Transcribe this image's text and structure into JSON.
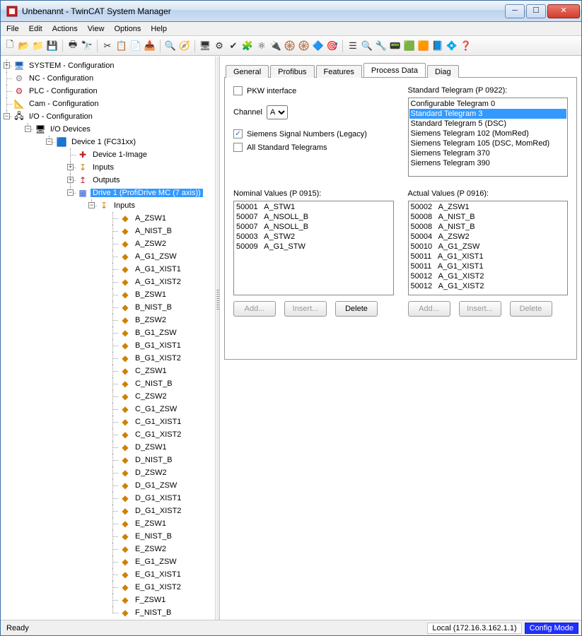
{
  "window": {
    "title": "Unbenannt - TwinCAT System Manager"
  },
  "menu": {
    "items": [
      "File",
      "Edit",
      "Actions",
      "View",
      "Options",
      "Help"
    ]
  },
  "toolbar": {
    "groups": [
      [
        "🗋",
        "📂",
        "📁",
        "💾"
      ],
      [
        "🖶",
        "🔭"
      ],
      [
        "✂",
        "📋",
        "📄",
        "📥"
      ],
      [
        "🔍",
        "🧭"
      ],
      [
        "🖥",
        "⚙",
        "✔",
        "🧩",
        "⚛",
        "🔌",
        "🛞",
        "🛞",
        "🔷",
        "🎯"
      ],
      [
        "☰",
        "🔍",
        "🔧",
        "📟",
        "🟩",
        "🟧",
        "📘",
        "💠",
        "❓"
      ]
    ]
  },
  "tree": {
    "top": [
      {
        "exp": "+",
        "icon": "🖥",
        "color": "#1a5fb4",
        "label": "SYSTEM - Configuration"
      },
      {
        "exp": "",
        "icon": "⚙",
        "color": "#888",
        "label": "NC - Configuration"
      },
      {
        "exp": "",
        "icon": "⚙",
        "color": "#c01c28",
        "label": "PLC - Configuration"
      },
      {
        "exp": "",
        "icon": "📐",
        "color": "#888",
        "label": "Cam - Configuration"
      }
    ],
    "io": {
      "label": "I/O - Configuration",
      "icon": "🖧",
      "exp": "−",
      "devices": {
        "label": "I/O Devices",
        "icon": "🖥",
        "exp": "−",
        "dev": {
          "label": "Device 1 (FC31xx)",
          "icon": "🟦",
          "exp": "−",
          "image": {
            "label": "Device 1-Image",
            "icon": "✚",
            "color": "#c01c28"
          },
          "inputs": {
            "label": "Inputs",
            "icon": "↧",
            "exp": "+"
          },
          "outputs": {
            "label": "Outputs",
            "icon": "↥",
            "exp": "+"
          },
          "drive": {
            "label": "Drive 1 (ProfiDrive MC (7 axis))",
            "icon": "▦",
            "exp": "−",
            "selected": true,
            "inputs": {
              "label": "Inputs",
              "icon": "↧",
              "exp": "−",
              "vars": [
                "A_ZSW1",
                "A_NIST_B",
                "A_ZSW2",
                "A_G1_ZSW",
                "A_G1_XIST1",
                "A_G1_XIST2",
                "B_ZSW1",
                "B_NIST_B",
                "B_ZSW2",
                "B_G1_ZSW",
                "B_G1_XIST1",
                "B_G1_XIST2",
                "C_ZSW1",
                "C_NIST_B",
                "C_ZSW2",
                "C_G1_ZSW",
                "C_G1_XIST1",
                "C_G1_XIST2",
                "D_ZSW1",
                "D_NIST_B",
                "D_ZSW2",
                "D_G1_ZSW",
                "D_G1_XIST1",
                "D_G1_XIST2",
                "E_ZSW1",
                "E_NIST_B",
                "E_ZSW2",
                "E_G1_ZSW",
                "E_G1_XIST1",
                "E_G1_XIST2",
                "F_ZSW1",
                "F_NIST_B"
              ]
            }
          }
        }
      }
    }
  },
  "tabs": {
    "items": [
      "General",
      "Profibus",
      "Features",
      "Process Data",
      "Diag"
    ],
    "active": 3
  },
  "panel": {
    "pkw_label": "PKW interface",
    "pkw_checked": false,
    "channel_label": "Channel",
    "channel_value": "A",
    "siemens_label": "Siemens Signal Numbers (Legacy)",
    "siemens_checked": true,
    "allstd_label": "All Standard Telegrams",
    "allstd_checked": false,
    "telegram_hdr": "Standard Telegram (P 0922):",
    "telegrams": [
      {
        "text": "Configurable Telegram 0",
        "sel": false
      },
      {
        "text": "Standard Telegram 3",
        "sel": true
      },
      {
        "text": "Standard Telegram 5 (DSC)",
        "sel": false
      },
      {
        "text": "Siemens Telegram 102 (MomRed)",
        "sel": false
      },
      {
        "text": "Siemens Telegram 105 (DSC, MomRed)",
        "sel": false
      },
      {
        "text": "Siemens Telegram 370",
        "sel": false
      },
      {
        "text": "Siemens Telegram 390",
        "sel": false
      }
    ],
    "nominal_hdr": "Nominal Values (P 0915):",
    "nominal": [
      [
        "50001",
        "A_STW1"
      ],
      [
        "50007",
        "A_NSOLL_B"
      ],
      [
        "50007",
        "A_NSOLL_B"
      ],
      [
        "50003",
        "A_STW2"
      ],
      [
        "50009",
        "A_G1_STW"
      ]
    ],
    "actual_hdr": "Actual Values (P 0916):",
    "actual": [
      [
        "50002",
        "A_ZSW1"
      ],
      [
        "50008",
        "A_NIST_B"
      ],
      [
        "50008",
        "A_NIST_B"
      ],
      [
        "50004",
        "A_ZSW2"
      ],
      [
        "50010",
        "A_G1_ZSW"
      ],
      [
        "50011",
        "A_G1_XIST1"
      ],
      [
        "50011",
        "A_G1_XIST1"
      ],
      [
        "50012",
        "A_G1_XIST2"
      ],
      [
        "50012",
        "A_G1_XIST2"
      ]
    ],
    "btn_add": "Add...",
    "btn_insert": "Insert...",
    "btn_delete": "Delete",
    "nominal_buttons": {
      "add_enabled": false,
      "insert_enabled": false,
      "delete_enabled": true
    },
    "actual_buttons": {
      "add_enabled": false,
      "insert_enabled": false,
      "delete_enabled": false
    }
  },
  "status": {
    "ready": "Ready",
    "local": "Local (172.16.3.162.1.1)",
    "mode": "Config Mode"
  },
  "colors": {
    "selection": "#3399ff",
    "var_icon": "#d08000"
  }
}
